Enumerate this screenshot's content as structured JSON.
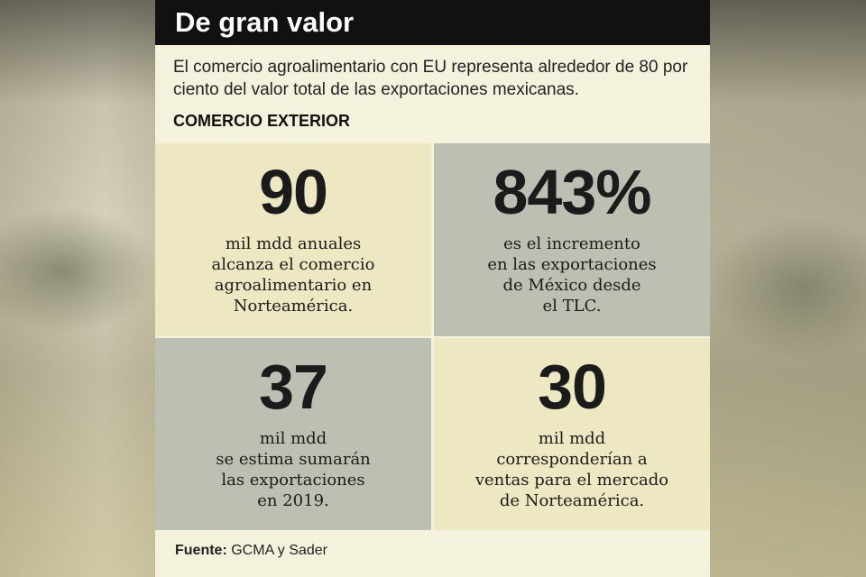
{
  "header": {
    "title": "De gran valor"
  },
  "intro": "El comercio agroalimentario con EU representa alrededor de 80 por ciento del valor total de las exportaciones mexicanas.",
  "section_title": "COMERCIO EXTERIOR",
  "stats": [
    {
      "value": "90",
      "description": "mil mdd anuales\nalcanza el comercio\nagroalimentario en\nNorteamérica."
    },
    {
      "value": "843%",
      "description": "es el incremento\nen las exportaciones\nde México desde\nel TLC."
    },
    {
      "value": "37",
      "description": "mil mdd\nse estima sumarán\nlas exportaciones\nen 2019."
    },
    {
      "value": "30",
      "description": "mil mdd\ncorresponderían a\nventas para el mercado\nde Norteamérica."
    }
  ],
  "source": {
    "label": "Fuente:",
    "text": "GCMA y Sader"
  },
  "colors": {
    "header_bg": "#111111",
    "card_bg": "#f4f1dc",
    "cell_light": "#ede7c2",
    "cell_gray": "#bdbfb3"
  }
}
